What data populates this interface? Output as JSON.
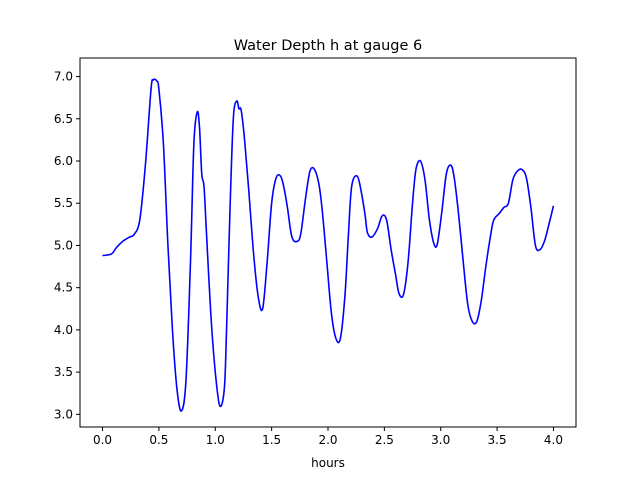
{
  "chart_data": {
    "type": "line",
    "title": "Water Depth h at gauge 6",
    "xlabel": "hours",
    "ylabel": "",
    "xlim": [
      -0.2,
      4.2
    ],
    "ylim": [
      2.85,
      7.22
    ],
    "xticks": [
      0.0,
      0.5,
      1.0,
      1.5,
      2.0,
      2.5,
      3.0,
      3.5,
      4.0
    ],
    "xtick_labels": [
      "0.0",
      "0.5",
      "1.0",
      "1.5",
      "2.0",
      "2.5",
      "3.0",
      "3.5",
      "4.0"
    ],
    "yticks": [
      3.0,
      3.5,
      4.0,
      4.5,
      5.0,
      5.5,
      6.0,
      6.5,
      7.0
    ],
    "ytick_labels": [
      "3.0",
      "3.5",
      "4.0",
      "4.5",
      "5.0",
      "5.5",
      "6.0",
      "6.5",
      "7.0"
    ],
    "grid": false,
    "series": [
      {
        "color": "#0000ff",
        "x": [
          0.0,
          0.08,
          0.12,
          0.18,
          0.24,
          0.28,
          0.33,
          0.38,
          0.43,
          0.45,
          0.48,
          0.5,
          0.54,
          0.58,
          0.62,
          0.66,
          0.7,
          0.74,
          0.78,
          0.81,
          0.84,
          0.86,
          0.88,
          0.9,
          0.92,
          0.96,
          1.0,
          1.04,
          1.08,
          1.1,
          1.13,
          1.16,
          1.19,
          1.21,
          1.23,
          1.26,
          1.3,
          1.34,
          1.38,
          1.42,
          1.46,
          1.5,
          1.54,
          1.58,
          1.61,
          1.64,
          1.68,
          1.73,
          1.76,
          1.8,
          1.84,
          1.88,
          1.92,
          1.95,
          1.99,
          2.03,
          2.07,
          2.11,
          2.15,
          2.18,
          2.21,
          2.26,
          2.3,
          2.33,
          2.35,
          2.39,
          2.44,
          2.48,
          2.52,
          2.56,
          2.6,
          2.63,
          2.67,
          2.71,
          2.75,
          2.78,
          2.82,
          2.86,
          2.9,
          2.94,
          2.97,
          3.01,
          3.05,
          3.09,
          3.12,
          3.16,
          3.2,
          3.24,
          3.28,
          3.32,
          3.36,
          3.4,
          3.44,
          3.47,
          3.52,
          3.56,
          3.6,
          3.64,
          3.68,
          3.72,
          3.76,
          3.8,
          3.84,
          3.88,
          3.92,
          3.96,
          4.0
        ],
        "y": [
          4.88,
          4.9,
          4.97,
          5.05,
          5.1,
          5.13,
          5.3,
          5.95,
          6.85,
          6.96,
          6.95,
          6.85,
          6.2,
          5.0,
          4.0,
          3.3,
          3.04,
          3.4,
          4.8,
          6.2,
          6.58,
          6.4,
          5.85,
          5.7,
          5.2,
          4.2,
          3.5,
          3.1,
          3.3,
          4.0,
          5.4,
          6.5,
          6.71,
          6.62,
          6.6,
          6.25,
          5.6,
          4.9,
          4.4,
          4.25,
          4.8,
          5.5,
          5.8,
          5.82,
          5.68,
          5.45,
          5.1,
          5.05,
          5.15,
          5.55,
          5.88,
          5.9,
          5.72,
          5.4,
          4.8,
          4.2,
          3.9,
          3.9,
          4.4,
          5.1,
          5.7,
          5.82,
          5.6,
          5.35,
          5.15,
          5.1,
          5.2,
          5.35,
          5.3,
          4.95,
          4.65,
          4.43,
          4.42,
          4.8,
          5.5,
          5.9,
          6.0,
          5.78,
          5.3,
          5.02,
          5.02,
          5.4,
          5.85,
          5.95,
          5.8,
          5.35,
          4.8,
          4.3,
          4.1,
          4.1,
          4.35,
          4.75,
          5.1,
          5.3,
          5.38,
          5.45,
          5.5,
          5.78,
          5.88,
          5.9,
          5.8,
          5.45,
          5.0,
          4.95,
          5.05,
          5.25,
          5.47
        ]
      }
    ]
  }
}
